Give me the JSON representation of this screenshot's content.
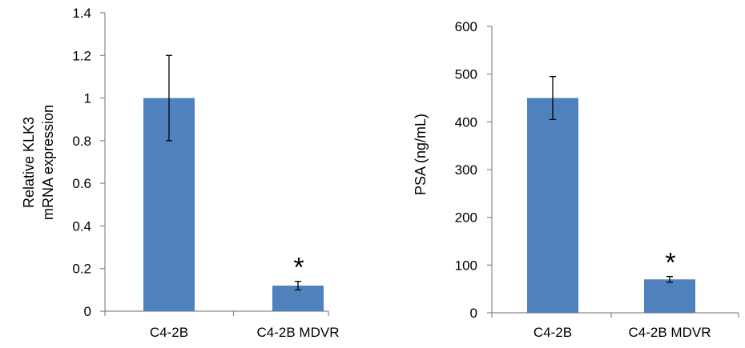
{
  "chart_data": [
    {
      "type": "bar",
      "categories": [
        "C4-2B",
        "C4-2B MDVR"
      ],
      "values": [
        1.0,
        0.12
      ],
      "error_low": [
        0.8,
        0.1
      ],
      "error_high": [
        1.2,
        0.14
      ],
      "annotations": [
        "",
        "*"
      ],
      "title": "",
      "xlabel": "",
      "ylabel": [
        "Relative KLK3",
        "mRNA expression"
      ],
      "ylim": [
        0,
        1.4
      ],
      "yticks": [
        0,
        0.2,
        0.4,
        0.6,
        0.8,
        1,
        1.2,
        1.4
      ],
      "ytick_labels": [
        "0",
        "0.2",
        "0.4",
        "0.6",
        "0.8",
        "1",
        "1.2",
        "1.4"
      ],
      "grid": false,
      "bar_color": "#4f81bd"
    },
    {
      "type": "bar",
      "categories": [
        "C4-2B",
        "C4-2B MDVR"
      ],
      "values": [
        450,
        70
      ],
      "error_low": [
        405,
        64
      ],
      "error_high": [
        495,
        76
      ],
      "annotations": [
        "",
        "*"
      ],
      "title": "",
      "xlabel": "",
      "ylabel": [
        "PSA (ng/mL)"
      ],
      "ylim": [
        0,
        600
      ],
      "yticks": [
        0,
        100,
        200,
        300,
        400,
        500,
        600
      ],
      "ytick_labels": [
        "0",
        "100",
        "200",
        "300",
        "400",
        "500",
        "600"
      ],
      "grid": false,
      "bar_color": "#4f81bd"
    }
  ]
}
